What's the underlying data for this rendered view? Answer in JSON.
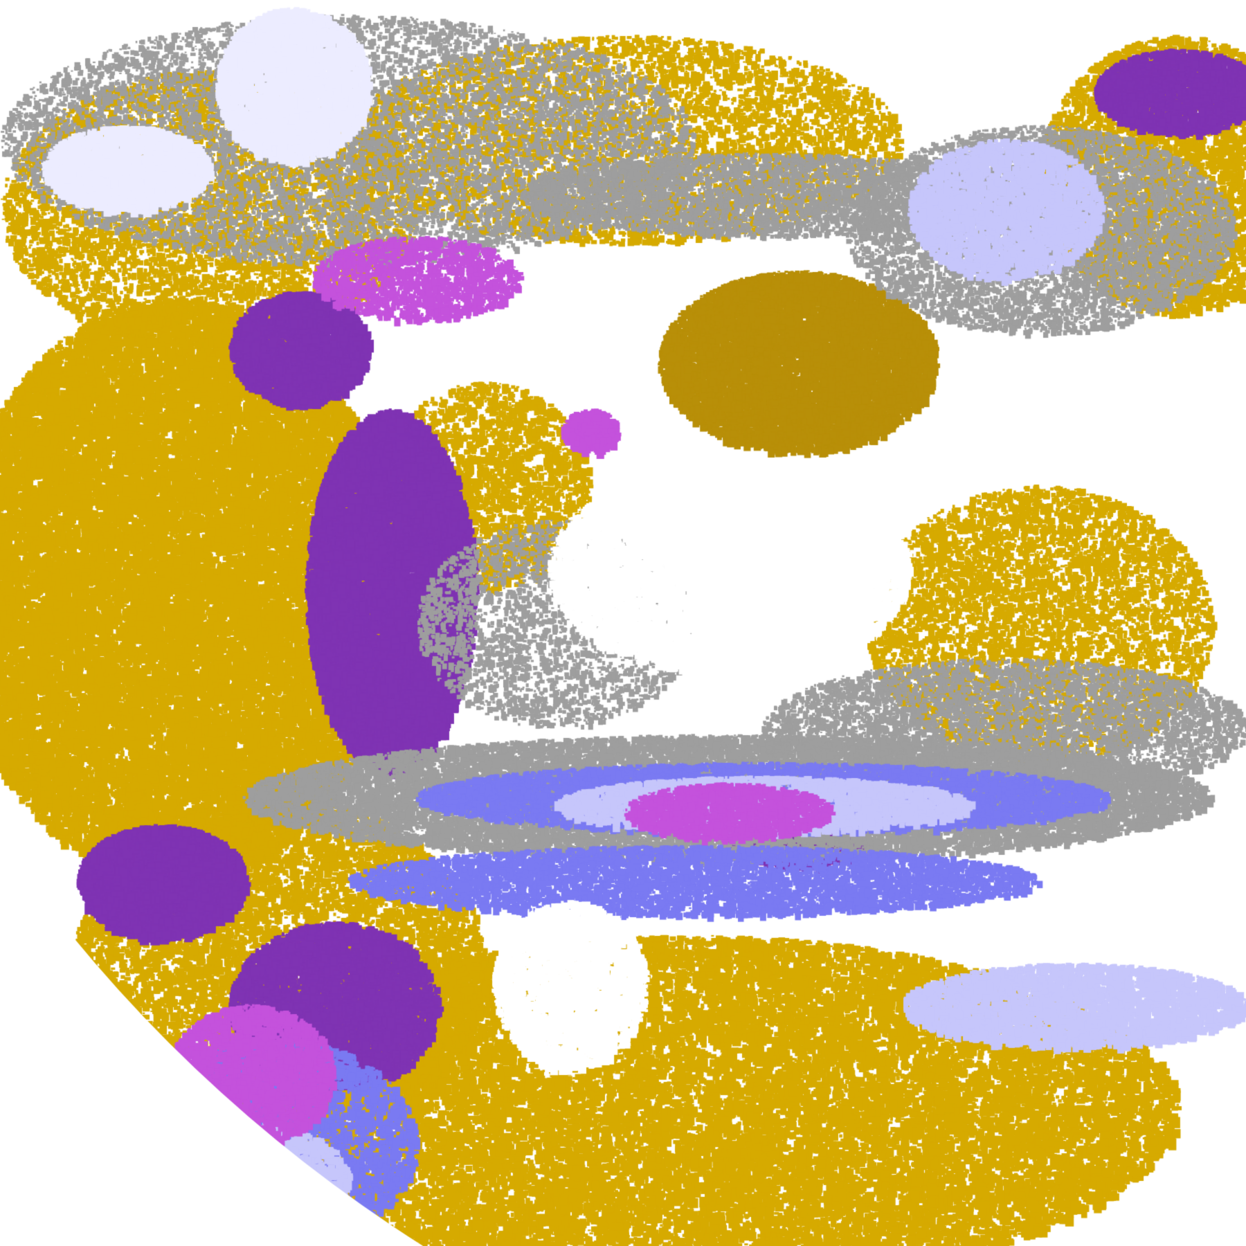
{
  "image": {
    "kind": "false-color satellite cloud/surface classification map",
    "palette": {
      "clear": "#ffffff",
      "gold": "#d6aa00",
      "dark_gold": "#b88f08",
      "purple": "#7f33b3",
      "magenta": "#c452dc",
      "blue_violet": "#7a7af2",
      "lavender": "#c6c6fb",
      "pale_lavender": "#ececff",
      "gray": "#9e9e9e",
      "space": "#ffffff"
    }
  }
}
